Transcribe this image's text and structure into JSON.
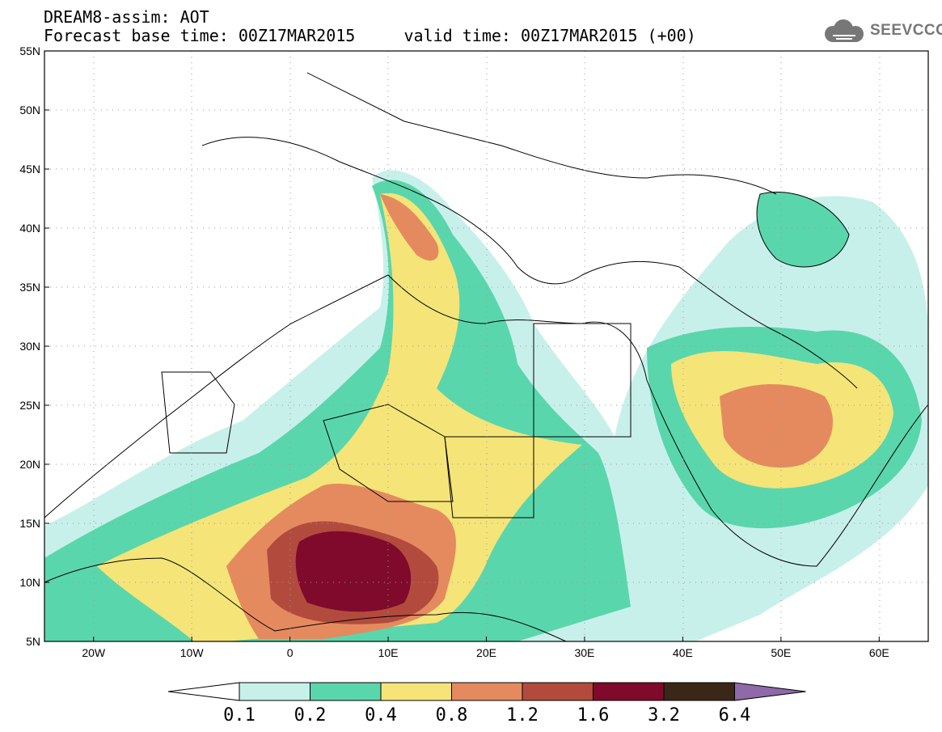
{
  "title": {
    "line1": "DREAM8-assim: AOT",
    "line2": "Forecast base time: 00Z17MAR2015     valid time: 00Z17MAR2015 (+00)"
  },
  "logo": {
    "text": "SEEVCCC",
    "icon": "cloud-icon"
  },
  "map": {
    "lat_labels": [
      "55N",
      "50N",
      "45N",
      "40N",
      "35N",
      "30N",
      "25N",
      "20N",
      "15N",
      "10N",
      "5N"
    ],
    "lon_labels": [
      "20W",
      "10W",
      "0",
      "10E",
      "20E",
      "30E",
      "40E",
      "50E",
      "60E"
    ],
    "lat_range": [
      5,
      55
    ],
    "lon_range": [
      -25,
      65
    ]
  },
  "colorbar": {
    "labels": [
      "0.1",
      "0.2",
      "0.4",
      "0.8",
      "1.2",
      "1.6",
      "3.2",
      "6.4"
    ],
    "colors": [
      "#ffffff",
      "#c8f0eb",
      "#5ad6ac",
      "#f5e478",
      "#e58a5e",
      "#b24b3e",
      "#800a2c",
      "#3b2718",
      "#8e6aa8"
    ]
  }
}
